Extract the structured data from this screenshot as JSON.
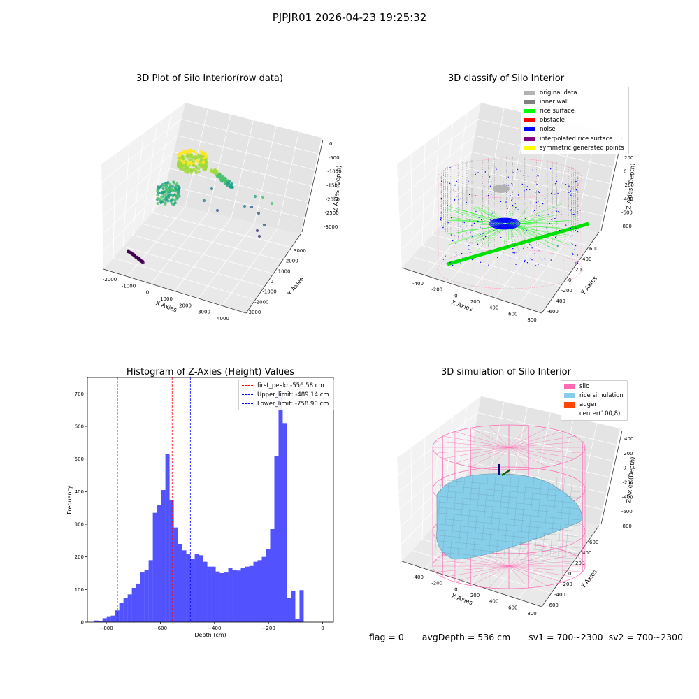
{
  "suptitle": "PJPJR01 2026-04-23 19:25:32",
  "status": {
    "flag": "flag = 0",
    "avg_depth": "avgDepth = 536 cm",
    "sv1": "sv1 = 700~2300",
    "sv2": "sv2 = 700~2300"
  },
  "chart_data": [
    {
      "type": "scatter",
      "title": "3D Plot of Silo Interior(row data)",
      "xlabel": "X Axies",
      "ylabel": "Y Axies",
      "zlabel": "Z Axies (Depth)",
      "x_ticks": [
        "-2000",
        "-1000",
        "0",
        "1000",
        "2000",
        "3000",
        "4000"
      ],
      "y_ticks": [
        "-3000",
        "-2000",
        "-1000",
        "0",
        "1000",
        "2000",
        "3000"
      ],
      "z_ticks": [
        "0",
        "-500",
        "-1000",
        "-1500",
        "-2000",
        "-2500",
        "-3000"
      ],
      "colormap": "viridis"
    },
    {
      "type": "scatter",
      "title": "3D classify of Silo Interior",
      "xlabel": "X Axies",
      "ylabel": "Y Axies",
      "zlabel": "Z Axies (Depth)",
      "x_ticks": [
        "-400",
        "-200",
        "0",
        "200",
        "400",
        "600",
        "800"
      ],
      "y_ticks": [
        "-600",
        "-400",
        "-200",
        "0",
        "200",
        "400",
        "600"
      ],
      "z_ticks": [
        "200",
        "0",
        "-200",
        "-400",
        "-600",
        "-800"
      ],
      "legend": [
        {
          "label": "original data",
          "color": "#b3b3b3"
        },
        {
          "label": "inner wall",
          "color": "#808080"
        },
        {
          "label": "rice surface",
          "color": "#00ff00"
        },
        {
          "label": "obstacle",
          "color": "#ff0000"
        },
        {
          "label": "noise",
          "color": "#0000ff"
        },
        {
          "label": "interpolated rice surface",
          "color": "#800080"
        },
        {
          "label": "symmetric generated points",
          "color": "#ffff00"
        }
      ]
    },
    {
      "type": "bar",
      "title": "Histogram of Z-Axies (Height) Values",
      "xlabel": "Depth (cm)",
      "ylabel": "Frequency",
      "xlim": [
        -870,
        40
      ],
      "ylim": [
        0,
        750
      ],
      "x_ticks": [
        -800,
        -600,
        -400,
        -200,
        0
      ],
      "y_ticks": [
        0,
        100,
        200,
        300,
        400,
        500,
        600,
        700
      ],
      "bin_start": -845,
      "bin_width": 15.5,
      "values": [
        5,
        3,
        12,
        18,
        20,
        36,
        60,
        75,
        85,
        105,
        118,
        152,
        160,
        190,
        335,
        360,
        405,
        515,
        375,
        290,
        240,
        220,
        210,
        195,
        210,
        205,
        185,
        170,
        170,
        155,
        150,
        152,
        165,
        160,
        158,
        165,
        170,
        172,
        185,
        190,
        200,
        225,
        285,
        510,
        710,
        610,
        75,
        95,
        10,
        98
      ],
      "bar_color": "#0000ff",
      "lines": [
        {
          "label": "first_peak: -556.58 cm",
          "value": -556.58,
          "color": "#ff0000"
        },
        {
          "label": "Upper_limit: -489.14 cm",
          "value": -489.14,
          "color": "#0000ff"
        },
        {
          "label": "Lower_limit: -758.90 cm",
          "value": -758.9,
          "color": "#0000ff"
        }
      ]
    },
    {
      "type": "area",
      "title": "3D simulation of Silo Interior",
      "xlabel": "X Axies",
      "ylabel": "Y Axies",
      "zlabel": "Z Axies (Depth)",
      "x_ticks": [
        "-400",
        "-200",
        "0",
        "200",
        "400",
        "600",
        "800"
      ],
      "y_ticks": [
        "-600",
        "-400",
        "-200",
        "0",
        "200",
        "400",
        "600"
      ],
      "z_ticks": [
        "400",
        "200",
        "0",
        "-200",
        "-400",
        "-600",
        "-800"
      ],
      "legend": [
        {
          "label": "silo",
          "color": "#ff69b4"
        },
        {
          "label": "rice simulation",
          "color": "#87ceeb"
        },
        {
          "label": "auger",
          "color": "#ff4500"
        },
        {
          "label": "center(100,8)",
          "color": "#ffffff"
        }
      ]
    }
  ]
}
